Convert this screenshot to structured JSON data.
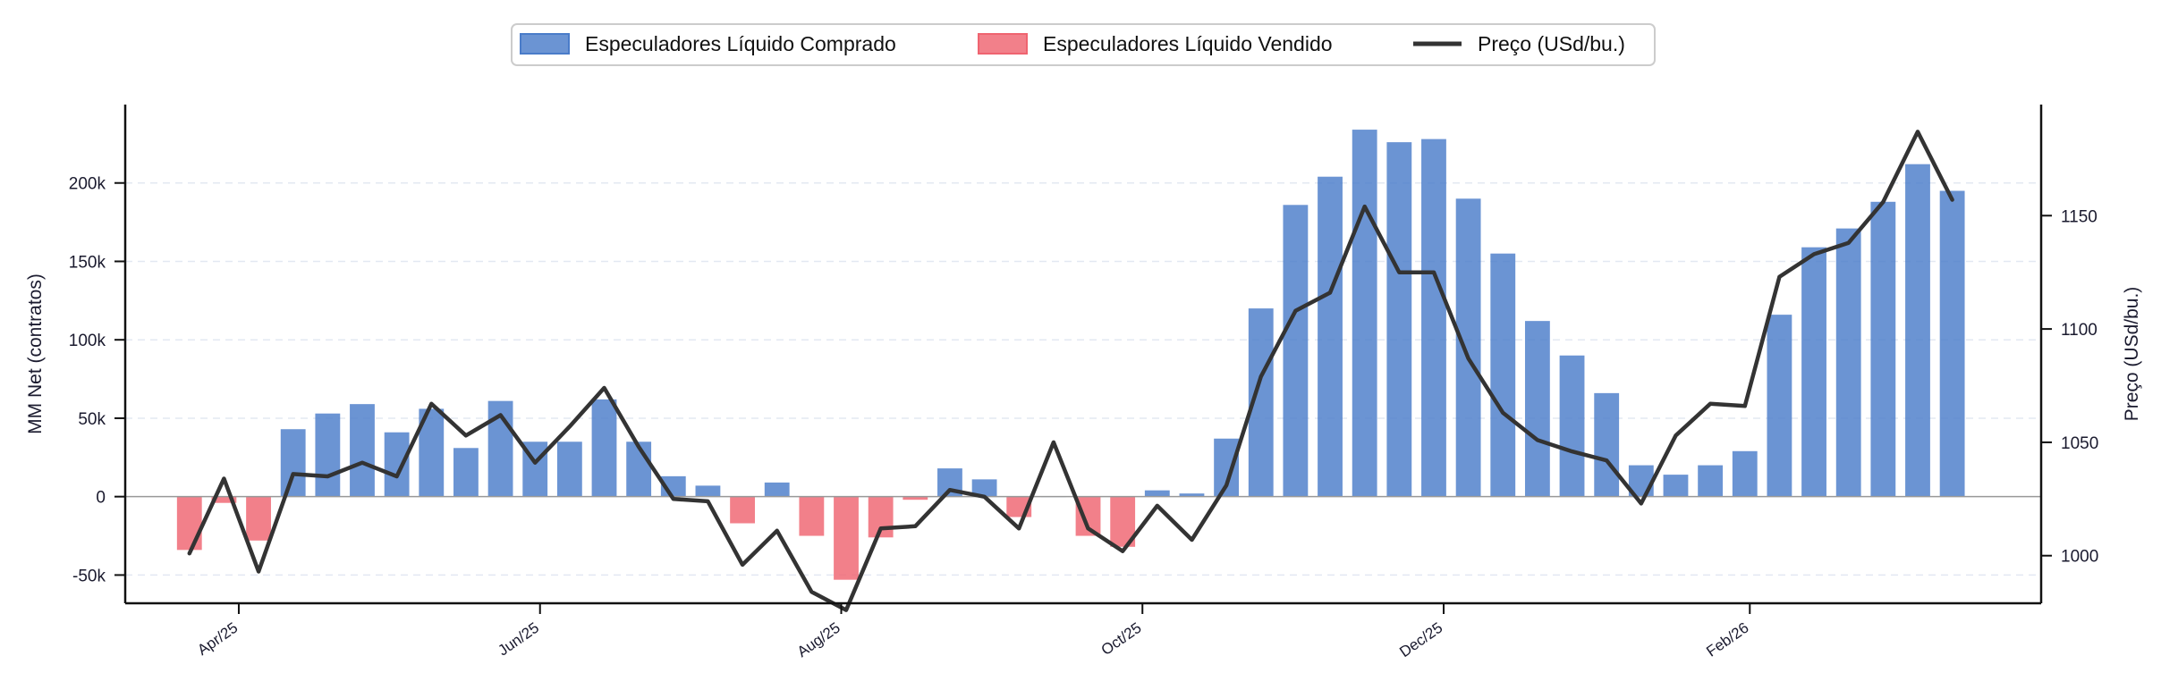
{
  "chart_data": {
    "type": "bar",
    "legend": {
      "placement": "top-center",
      "entries": [
        {
          "label": "Especuladores Líquido Comprado",
          "kind": "bar",
          "color": "#4a7cc9"
        },
        {
          "label": "Especuladores Líquido Vendido",
          "kind": "bar",
          "color": "#ef6470"
        },
        {
          "label": "Preço (USd/bu.)",
          "kind": "line",
          "color": "#333333"
        }
      ]
    },
    "colors": {
      "positive": "#4a7cc9",
      "negative": "#ef6470",
      "line": "#333333"
    },
    "ylabel_left": "MM Net (contratos)",
    "ylabel_right": "Preço (USd/bu.)",
    "y_left": {
      "lim": [
        -68000,
        250000
      ],
      "ticks": [
        -50000,
        0,
        50000,
        100000,
        150000,
        200000
      ],
      "tick_labels": [
        "-50k",
        "0",
        "50k",
        "100k",
        "150k",
        "200k"
      ]
    },
    "y_right": {
      "lim": [
        979,
        1199
      ],
      "ticks": [
        1000,
        1050,
        1100,
        1150
      ],
      "tick_labels": [
        "1000",
        "1050",
        "1100",
        "1150"
      ]
    },
    "x_lim": [
      "2025-03-09",
      "2026-04-01"
    ],
    "x_ticks": [
      {
        "date": "2025-04-01",
        "label": "Apr/25"
      },
      {
        "date": "2025-06-01",
        "label": "Jun/25"
      },
      {
        "date": "2025-08-01",
        "label": "Aug/25"
      },
      {
        "date": "2025-10-01",
        "label": "Oct/25"
      },
      {
        "date": "2025-12-01",
        "label": "Dec/25"
      },
      {
        "date": "2026-02-01",
        "label": "Feb/26"
      }
    ],
    "grid": "horizontal dashed",
    "series": [
      {
        "type": "bar",
        "dates": [
          "2025-03-22",
          "2025-03-29",
          "2025-04-05",
          "2025-04-12",
          "2025-04-19",
          "2025-04-26",
          "2025-05-03",
          "2025-05-10",
          "2025-05-17",
          "2025-05-24",
          "2025-05-31",
          "2025-06-07",
          "2025-06-14",
          "2025-06-21",
          "2025-06-28",
          "2025-07-05",
          "2025-07-12",
          "2025-07-19",
          "2025-07-26",
          "2025-08-02",
          "2025-08-09",
          "2025-08-16",
          "2025-08-23",
          "2025-08-30",
          "2025-09-06",
          "2025-09-13",
          "2025-09-20",
          "2025-09-27",
          "2025-10-04",
          "2025-10-11",
          "2025-10-18",
          "2025-10-25",
          "2025-11-01",
          "2025-11-08",
          "2025-11-15",
          "2025-11-22",
          "2025-11-29",
          "2025-12-06",
          "2025-12-13",
          "2025-12-20",
          "2025-12-27",
          "2026-01-03",
          "2026-01-10",
          "2026-01-17",
          "2026-01-24",
          "2026-01-31",
          "2026-02-07",
          "2026-02-14",
          "2026-02-21",
          "2026-02-28",
          "2026-03-07",
          "2026-03-14"
        ],
        "values": [
          -34000,
          -4000,
          -28000,
          43000,
          53000,
          59000,
          41000,
          56000,
          31000,
          61000,
          35000,
          35000,
          62000,
          35000,
          13000,
          7000,
          -17000,
          9000,
          -25000,
          -53000,
          -26000,
          -2000,
          18000,
          11000,
          -13000,
          0,
          -25000,
          -32000,
          4000,
          2000,
          37000,
          120000,
          186000,
          204000,
          234000,
          226000,
          228000,
          190000,
          155000,
          112000,
          90000,
          66000,
          20000,
          14000,
          20000,
          29000,
          116000,
          159000,
          171000,
          188000,
          212000,
          195000
        ]
      },
      {
        "type": "line",
        "name": "Preço (USd/bu.)",
        "dates": [
          "2025-03-22",
          "2025-03-29",
          "2025-04-05",
          "2025-04-12",
          "2025-04-19",
          "2025-04-26",
          "2025-05-03",
          "2025-05-10",
          "2025-05-17",
          "2025-05-24",
          "2025-05-31",
          "2025-06-07",
          "2025-06-14",
          "2025-06-21",
          "2025-06-28",
          "2025-07-05",
          "2025-07-12",
          "2025-07-19",
          "2025-07-26",
          "2025-08-02",
          "2025-08-09",
          "2025-08-16",
          "2025-08-23",
          "2025-08-30",
          "2025-09-06",
          "2025-09-13",
          "2025-09-20",
          "2025-09-27",
          "2025-10-04",
          "2025-10-11",
          "2025-10-18",
          "2025-10-25",
          "2025-11-01",
          "2025-11-08",
          "2025-11-15",
          "2025-11-22",
          "2025-11-29",
          "2025-12-06",
          "2025-12-13",
          "2025-12-20",
          "2025-12-27",
          "2026-01-03",
          "2026-01-10",
          "2026-01-17",
          "2026-01-24",
          "2026-01-31",
          "2026-02-07",
          "2026-02-14",
          "2026-02-21",
          "2026-02-28",
          "2026-03-07",
          "2026-03-14"
        ],
        "values": [
          1001,
          1034,
          993,
          1036,
          1035,
          1041,
          1035,
          1067,
          1053,
          1062,
          1041,
          1057,
          1074,
          1048,
          1025,
          1024,
          996,
          1011,
          984,
          976,
          1012,
          1013,
          1029,
          1026,
          1012,
          1050,
          1012,
          1002,
          1022,
          1007,
          1031,
          1079,
          1108,
          1116,
          1154,
          1125,
          1125,
          1087,
          1063,
          1051,
          1046,
          1042,
          1023,
          1053,
          1067,
          1066,
          1123,
          1133,
          1138,
          1156,
          1187,
          1157
        ]
      }
    ]
  }
}
